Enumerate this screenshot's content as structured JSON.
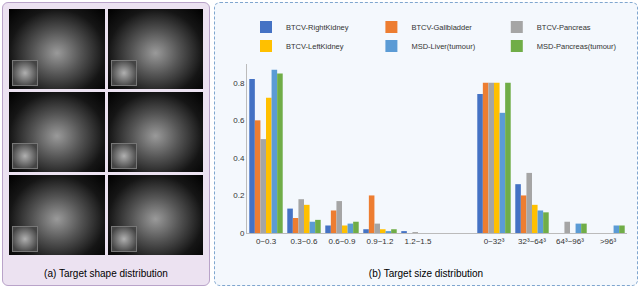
{
  "image_panel": {
    "caption": "(a) Target shape distribution"
  },
  "chart_data": {
    "type": "bar",
    "title": "(b) Target size distribution",
    "categories": [
      "0~0.3",
      "0.3~0.6",
      "0.6~0.9",
      "0.9~1.2",
      "1.2~1.5",
      null,
      "0~32³",
      "32³~64³",
      "64³~96³",
      ">96³"
    ],
    "series": [
      {
        "name": "BTCV-RightKidney",
        "color": "#4472c4",
        "values": [
          0.82,
          0.13,
          0.04,
          0.02,
          0.01,
          null,
          0.74,
          0.26,
          0,
          0
        ]
      },
      {
        "name": "BTCV-Gallbladder",
        "color": "#ed7d31",
        "values": [
          0.6,
          0.08,
          0.12,
          0.2,
          0,
          null,
          0.8,
          0.2,
          0,
          0
        ]
      },
      {
        "name": "BTCV-Pancreas",
        "color": "#a5a5a5",
        "values": [
          0.5,
          0.18,
          0.17,
          0.05,
          0.005,
          null,
          0.8,
          0.32,
          0.06,
          0
        ]
      },
      {
        "name": "BTCV-LeftKidney",
        "color": "#ffc000",
        "values": [
          0.72,
          0.15,
          0.04,
          0.02,
          0,
          null,
          0.8,
          0.15,
          0,
          0
        ]
      },
      {
        "name": "MSD-Liver(tumour)",
        "color": "#5b9bd5",
        "values": [
          0.87,
          0.06,
          0.05,
          0.01,
          0,
          null,
          0.64,
          0.12,
          0.05,
          0.04
        ]
      },
      {
        "name": "MSD-Pancreas(tumour)",
        "color": "#70ad47",
        "values": [
          0.85,
          0.07,
          0.06,
          0.02,
          0,
          null,
          0.8,
          0.11,
          0.05,
          0.04
        ]
      }
    ],
    "ylim": [
      0,
      0.9
    ],
    "yticks": [
      0,
      0.2,
      0.4,
      0.6,
      0.8
    ],
    "grid": false,
    "legend": "top"
  }
}
